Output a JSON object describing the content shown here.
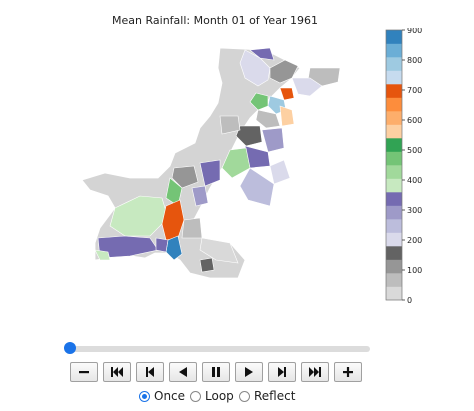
{
  "title": "Mean Rainfall: Month 01 of Year 1961",
  "colorbar": {
    "ticks": [
      "0",
      "100",
      "200",
      "300",
      "400",
      "500",
      "600",
      "700",
      "800",
      "900"
    ],
    "colors": [
      "#d9d9d9",
      "#bdbdbd",
      "#969696",
      "#636363",
      "#dadaeb",
      "#bcbddc",
      "#9e9ac8",
      "#756bb1",
      "#c7e9c0",
      "#a1d99b",
      "#74c476",
      "#31a354",
      "#fdd0a2",
      "#fdae6b",
      "#fd8d3c",
      "#e6550d",
      "#c6dbef",
      "#9ecae1",
      "#6baed6",
      "#3182bd"
    ]
  },
  "animation": {
    "slider_position": 0,
    "buttons": [
      "minus",
      "first",
      "prev-frame",
      "play-reverse",
      "pause",
      "play",
      "next-frame",
      "last",
      "plus"
    ],
    "loop_modes": [
      {
        "label": "Once",
        "selected": true
      },
      {
        "label": "Loop",
        "selected": false
      },
      {
        "label": "Reflect",
        "selected": false
      }
    ]
  }
}
